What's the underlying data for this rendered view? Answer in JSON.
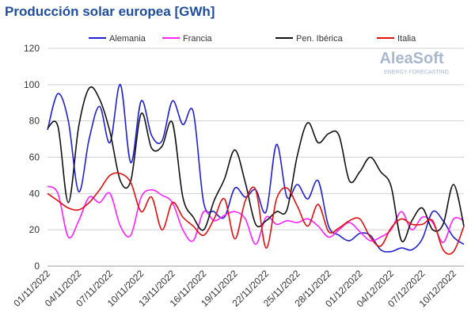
{
  "chart_data": {
    "type": "line",
    "title": "Producción solar europea [GWh]",
    "watermark": {
      "brand": "AleaSoft",
      "tagline": "ENERGY FORECASTING"
    },
    "categories": [
      "01/11/2022",
      null,
      null,
      "04/11/2022",
      null,
      null,
      "07/11/2022",
      null,
      null,
      "10/11/2022",
      null,
      null,
      "13/11/2022",
      null,
      null,
      "16/11/2022",
      null,
      null,
      "19/11/2022",
      null,
      null,
      "22/11/2022",
      null,
      null,
      "25/11/2022",
      null,
      null,
      "28/11/2022",
      null,
      null,
      "01/12/2022",
      null,
      null,
      "04/12/2022",
      null,
      null,
      "07/12/2022",
      null,
      null,
      "10/12/2022",
      null
    ],
    "series": [
      {
        "name": "Alemania",
        "color": "#2020d0",
        "values": [
          75,
          95,
          80,
          41,
          70,
          88,
          68,
          100,
          57,
          91,
          72,
          69,
          91,
          78,
          85,
          35,
          30,
          27,
          43,
          38,
          42,
          30,
          67,
          38,
          45,
          37,
          47,
          22,
          17,
          14,
          18,
          17,
          9,
          8,
          10,
          9,
          15,
          30,
          25,
          16,
          12
        ]
      },
      {
        "name": "Francia",
        "color": "#ff20ff",
        "values": [
          44,
          40,
          16,
          25,
          38,
          35,
          40,
          22,
          17,
          38,
          42,
          39,
          35,
          20,
          14,
          30,
          25,
          28,
          30,
          26,
          12,
          27,
          23,
          25,
          24,
          26,
          22,
          16,
          20,
          24,
          19,
          14,
          16,
          20,
          30,
          20,
          27,
          24,
          13,
          26,
          25
        ]
      },
      {
        "name": "Pen. Ibérica",
        "color": "#111111",
        "values": [
          76,
          77,
          35,
          77,
          98,
          92,
          74,
          47,
          47,
          84,
          65,
          66,
          79,
          38,
          27,
          20,
          36,
          48,
          64,
          46,
          23,
          25,
          30,
          31,
          61,
          79,
          68,
          73,
          72,
          47,
          52,
          60,
          52,
          44,
          14,
          25,
          32,
          20,
          23,
          45,
          22
        ]
      },
      {
        "name": "Italia",
        "color": "#e01010",
        "values": [
          40,
          36,
          32,
          31,
          35,
          42,
          50,
          51,
          46,
          30,
          38,
          20,
          35,
          27,
          22,
          17,
          26,
          37,
          15,
          36,
          42,
          10,
          37,
          43,
          33,
          22,
          34,
          19,
          21,
          25,
          26,
          16,
          11,
          21,
          26,
          23,
          23,
          25,
          9,
          8,
          22
        ]
      }
    ],
    "ylim": [
      0,
      120
    ],
    "yticks": [
      0,
      20,
      40,
      60,
      80,
      100,
      120
    ],
    "grid": true,
    "legend": "top"
  }
}
